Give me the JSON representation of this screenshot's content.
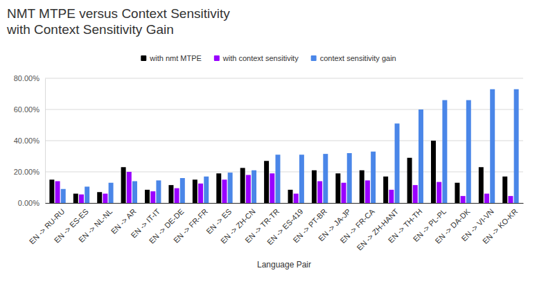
{
  "chart_data": {
    "type": "bar",
    "title": "NMT MTPE versus Context Sensitivity\nwith Context Sensitivity Gain",
    "x_label": "Language Pair",
    "categories": [
      "EN -> RU-RU",
      "EN -> ES-ES",
      "EN -> NL-NL",
      "EN -> AR",
      "EN -> IT-IT",
      "EN -> DE-DE",
      "EN -> FR-FR",
      "EN -> ES",
      "EN -> ZH-CN",
      "EN -> TR-TR",
      "EN -> ES-419",
      "EN -> PT-BR",
      "EN -> JA-JP",
      "EN -> FR-CA",
      "EN -> ZH-HANT",
      "EN -> TH-TH",
      "EN -> PL-PL",
      "EN -> DA-DK",
      "EN -> VI-VN",
      "EN -> KO-KR"
    ],
    "series": [
      {
        "name": "with nmt MTPE",
        "color": "#000000",
        "values": [
          15,
          6,
          7,
          23,
          8.5,
          11.5,
          15,
          19,
          22.5,
          27,
          8.5,
          21,
          19,
          21,
          17,
          29,
          40,
          13,
          23,
          17
        ]
      },
      {
        "name": "with context sensitivity",
        "color": "#9900ff",
        "values": [
          14,
          5.5,
          6,
          20,
          7.5,
          9.5,
          12.5,
          15,
          18,
          19,
          6,
          14,
          13,
          14.5,
          8.5,
          11.5,
          13.5,
          4.5,
          6,
          4.5
        ]
      },
      {
        "name": "context sensitivity gain",
        "color": "#4a86e8",
        "values": [
          9,
          10.5,
          13,
          14,
          14.5,
          16,
          17,
          19.5,
          21,
          31,
          31,
          31.5,
          32,
          33,
          51,
          60,
          66,
          66,
          73,
          73
        ]
      }
    ],
    "ylim": [
      0,
      80
    ],
    "yticks": [
      {
        "value": 0,
        "label": "0.00%"
      },
      {
        "value": 20,
        "label": "20.00%"
      },
      {
        "value": 40,
        "label": "40.00%"
      },
      {
        "value": 60,
        "label": "60.00%"
      },
      {
        "value": 80,
        "label": "80.00%"
      }
    ],
    "grid": true,
    "legend": "top"
  }
}
